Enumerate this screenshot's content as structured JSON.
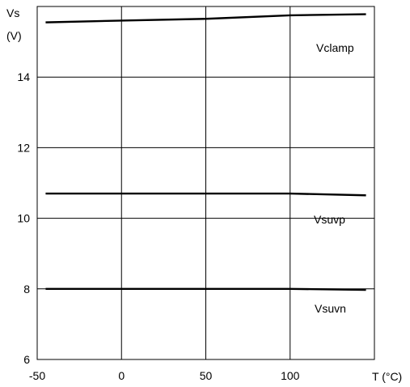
{
  "chart_data": {
    "type": "line",
    "ylabel_line1": "Vs",
    "ylabel_line2": "(V)",
    "xlabel": "T (°C)",
    "xlim": [
      -50,
      150
    ],
    "ylim": [
      6,
      16
    ],
    "xticks": [
      -50,
      0,
      50,
      100
    ],
    "yticks": [
      6,
      8,
      10,
      12,
      14
    ],
    "x_tick_labels": [
      "-50",
      "0",
      "50",
      "100"
    ],
    "y_tick_labels": [
      "6",
      "8",
      "10",
      "12",
      "14"
    ],
    "grid": true,
    "series": [
      {
        "name": "Vclamp",
        "x": [
          -45,
          0,
          50,
          100,
          145
        ],
        "y": [
          15.55,
          15.6,
          15.65,
          15.75,
          15.78
        ]
      },
      {
        "name": "Vsuvp",
        "x": [
          -45,
          0,
          50,
          100,
          145
        ],
        "y": [
          10.7,
          10.7,
          10.7,
          10.7,
          10.65
        ]
      },
      {
        "name": "Vsuvn",
        "x": [
          -45,
          0,
          50,
          100,
          145
        ],
        "y": [
          8.0,
          8.0,
          8.0,
          8.0,
          7.97
        ]
      }
    ]
  }
}
